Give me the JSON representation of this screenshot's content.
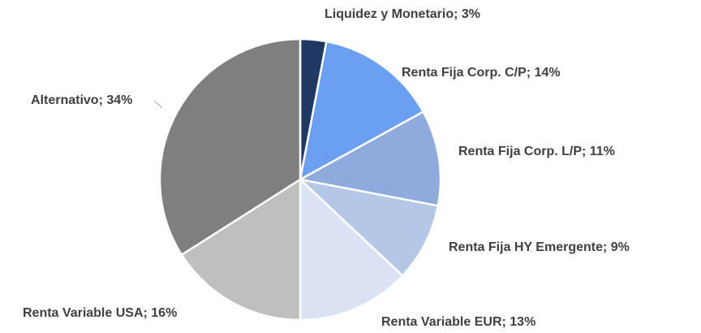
{
  "chart_data": {
    "type": "pie",
    "values": [
      3,
      14,
      11,
      9,
      13,
      16,
      34
    ],
    "value_labels": [
      "Liquidez y Monetario; 3%",
      "Renta Fija Corp. C/P; 14%",
      "Renta Fija Corp. L/P; 11%",
      "Renta Fija HY Emergente; 9%",
      "Renta Variable EUR; 13%",
      "Renta Variable USA; 16%",
      "Alternativo; 34%"
    ],
    "colors": [
      "#203864",
      "#6a9ff2",
      "#8faadc",
      "#b4c7e7",
      "#dae3f3",
      "#bfbfbf",
      "#7f7f7f"
    ]
  }
}
